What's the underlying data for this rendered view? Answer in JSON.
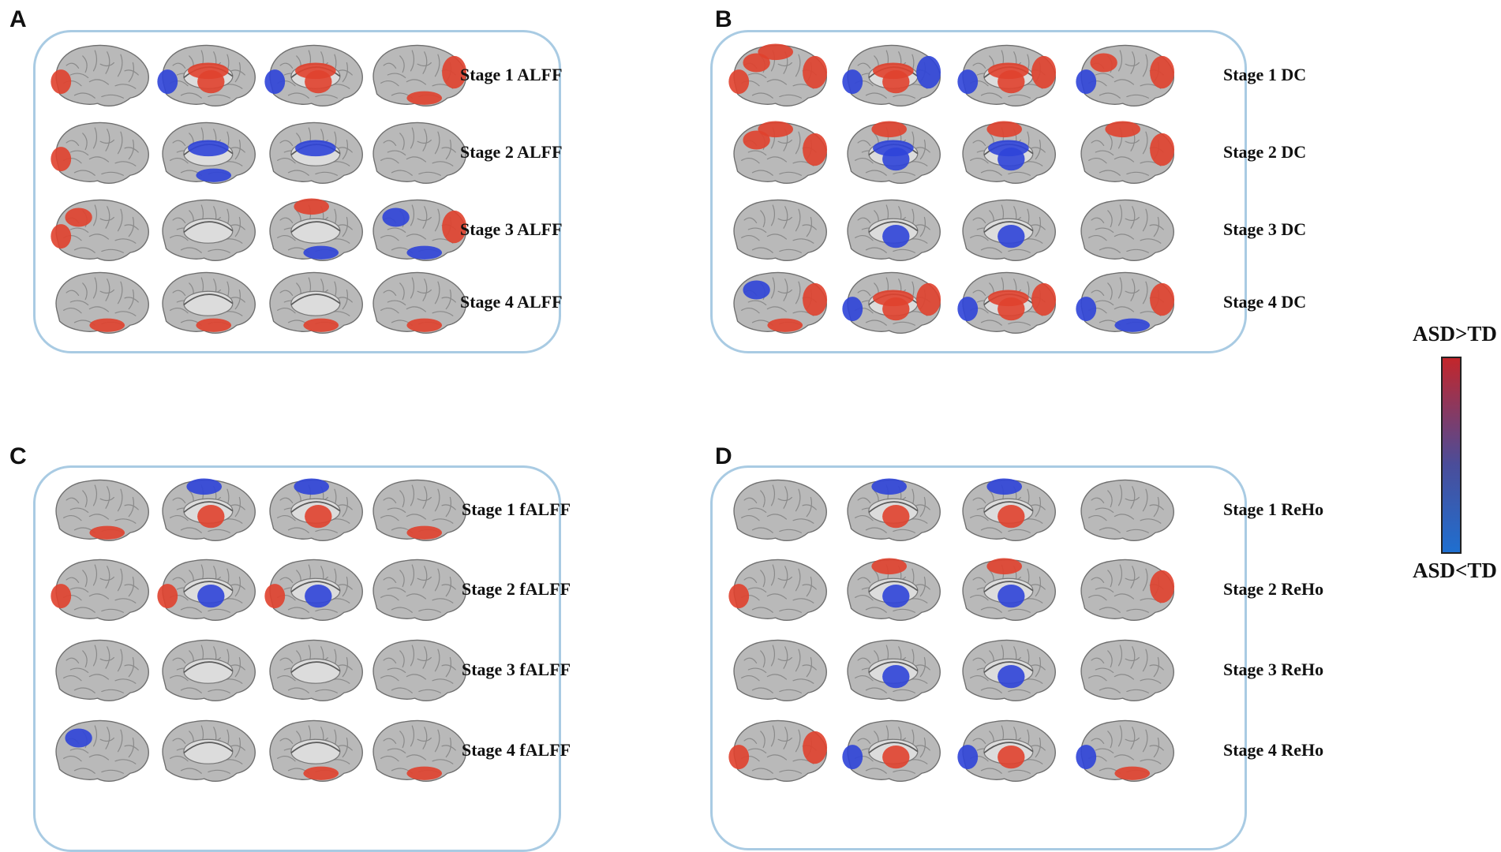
{
  "panels": [
    {
      "letter": "A",
      "rows": [
        {
          "label": "Stage 1 ALFF",
          "brains": [
            [
              [
                "occ",
                "r"
              ]
            ],
            [
              [
                "occ",
                "b"
              ],
              [
                "cing",
                "r"
              ],
              [
                "thal",
                "r"
              ]
            ],
            [
              [
                "cing",
                "r"
              ],
              [
                "occ",
                "b"
              ],
              [
                "thal",
                "r"
              ]
            ],
            [
              [
                "temp",
                "r"
              ],
              [
                "front",
                "r"
              ]
            ]
          ]
        },
        {
          "label": "Stage 2 ALFF",
          "brains": [
            [
              [
                "occ",
                "r"
              ]
            ],
            [
              [
                "cing",
                "b"
              ],
              [
                "temp",
                "b"
              ]
            ],
            [
              [
                "cing",
                "b"
              ]
            ],
            []
          ]
        },
        {
          "label": "Stage 3 ALFF",
          "brains": [
            [
              [
                "occ",
                "r"
              ],
              [
                "par",
                "r"
              ]
            ],
            [],
            [
              [
                "top",
                "r"
              ],
              [
                "temp",
                "b"
              ]
            ],
            [
              [
                "front",
                "r"
              ],
              [
                "temp",
                "b"
              ],
              [
                "par",
                "b"
              ]
            ]
          ]
        },
        {
          "label": "Stage 4 ALFF",
          "brains": [
            [
              [
                "temp",
                "r"
              ]
            ],
            [
              [
                "temp",
                "r"
              ]
            ],
            [
              [
                "temp",
                "r"
              ]
            ],
            [
              [
                "temp",
                "r"
              ]
            ]
          ]
        }
      ]
    },
    {
      "letter": "B",
      "rows": [
        {
          "label": "Stage 1 DC",
          "brains": [
            [
              [
                "front",
                "r"
              ],
              [
                "par",
                "r"
              ],
              [
                "occ",
                "r"
              ],
              [
                "top",
                "r"
              ]
            ],
            [
              [
                "front",
                "b"
              ],
              [
                "cing",
                "r"
              ],
              [
                "thal",
                "r"
              ],
              [
                "occ",
                "b"
              ]
            ],
            [
              [
                "front",
                "r"
              ],
              [
                "cing",
                "r"
              ],
              [
                "thal",
                "r"
              ],
              [
                "occ",
                "b"
              ]
            ],
            [
              [
                "front",
                "r"
              ],
              [
                "par",
                "r"
              ],
              [
                "occ",
                "b"
              ]
            ]
          ]
        },
        {
          "label": "Stage 2 DC",
          "brains": [
            [
              [
                "top",
                "r"
              ],
              [
                "par",
                "r"
              ],
              [
                "front",
                "r"
              ]
            ],
            [
              [
                "top",
                "r"
              ],
              [
                "thal",
                "b"
              ],
              [
                "cing",
                "b"
              ]
            ],
            [
              [
                "top",
                "r"
              ],
              [
                "thal",
                "b"
              ],
              [
                "cing",
                "b"
              ]
            ],
            [
              [
                "top",
                "r"
              ],
              [
                "front",
                "r"
              ]
            ]
          ]
        },
        {
          "label": "Stage 3 DC",
          "brains": [
            [],
            [
              [
                "thal",
                "b"
              ]
            ],
            [
              [
                "thal",
                "b"
              ]
            ],
            []
          ]
        },
        {
          "label": "Stage 4 DC",
          "brains": [
            [
              [
                "front",
                "r"
              ],
              [
                "par",
                "b"
              ],
              [
                "temp",
                "r"
              ]
            ],
            [
              [
                "occ",
                "b"
              ],
              [
                "cing",
                "r"
              ],
              [
                "thal",
                "r"
              ],
              [
                "front",
                "r"
              ]
            ],
            [
              [
                "occ",
                "b"
              ],
              [
                "cing",
                "r"
              ],
              [
                "thal",
                "r"
              ],
              [
                "front",
                "r"
              ]
            ],
            [
              [
                "front",
                "r"
              ],
              [
                "occ",
                "b"
              ],
              [
                "temp",
                "b"
              ]
            ]
          ]
        }
      ]
    },
    {
      "letter": "C",
      "rows": [
        {
          "label": "Stage 1 fALFF",
          "brains": [
            [
              [
                "temp",
                "r"
              ]
            ],
            [
              [
                "top",
                "b"
              ],
              [
                "thal",
                "r"
              ]
            ],
            [
              [
                "top",
                "b"
              ],
              [
                "thal",
                "r"
              ]
            ],
            [
              [
                "temp",
                "r"
              ]
            ]
          ]
        },
        {
          "label": "Stage 2 fALFF",
          "brains": [
            [
              [
                "occ",
                "r"
              ]
            ],
            [
              [
                "thal",
                "b"
              ],
              [
                "occ",
                "r"
              ]
            ],
            [
              [
                "thal",
                "b"
              ],
              [
                "occ",
                "r"
              ]
            ],
            []
          ]
        },
        {
          "label": "Stage 3 fALFF",
          "brains": [
            [],
            [],
            [],
            []
          ]
        },
        {
          "label": "Stage 4 fALFF",
          "brains": [
            [
              [
                "par",
                "b"
              ]
            ],
            [],
            [
              [
                "temp",
                "r"
              ]
            ],
            [
              [
                "temp",
                "r"
              ]
            ]
          ]
        }
      ]
    },
    {
      "letter": "D",
      "rows": [
        {
          "label": "Stage 1 ReHo",
          "brains": [
            [],
            [
              [
                "top",
                "b"
              ],
              [
                "thal",
                "r"
              ]
            ],
            [
              [
                "top",
                "b"
              ],
              [
                "thal",
                "r"
              ]
            ],
            []
          ]
        },
        {
          "label": "Stage 2 ReHo",
          "brains": [
            [
              [
                "occ",
                "r"
              ]
            ],
            [
              [
                "top",
                "r"
              ],
              [
                "thal",
                "b"
              ]
            ],
            [
              [
                "top",
                "r"
              ],
              [
                "thal",
                "b"
              ]
            ],
            [
              [
                "front",
                "r"
              ]
            ]
          ]
        },
        {
          "label": "Stage 3 ReHo",
          "brains": [
            [],
            [
              [
                "thal",
                "b"
              ]
            ],
            [
              [
                "thal",
                "b"
              ]
            ],
            []
          ]
        },
        {
          "label": "Stage 4 ReHo",
          "brains": [
            [
              [
                "occ",
                "r"
              ],
              [
                "front",
                "r"
              ]
            ],
            [
              [
                "occ",
                "b"
              ],
              [
                "thal",
                "r"
              ]
            ],
            [
              [
                "thal",
                "r"
              ],
              [
                "occ",
                "b"
              ]
            ],
            [
              [
                "occ",
                "b"
              ],
              [
                "temp",
                "r"
              ]
            ]
          ]
        }
      ]
    }
  ],
  "legend": {
    "top_label": "ASD>TD",
    "bottom_label": "ASD<TD"
  },
  "colors": {
    "increase": "#e0412d",
    "decrease": "#2f44d8",
    "brain": "#b8b8b8",
    "frame": "#a9cbe3"
  }
}
